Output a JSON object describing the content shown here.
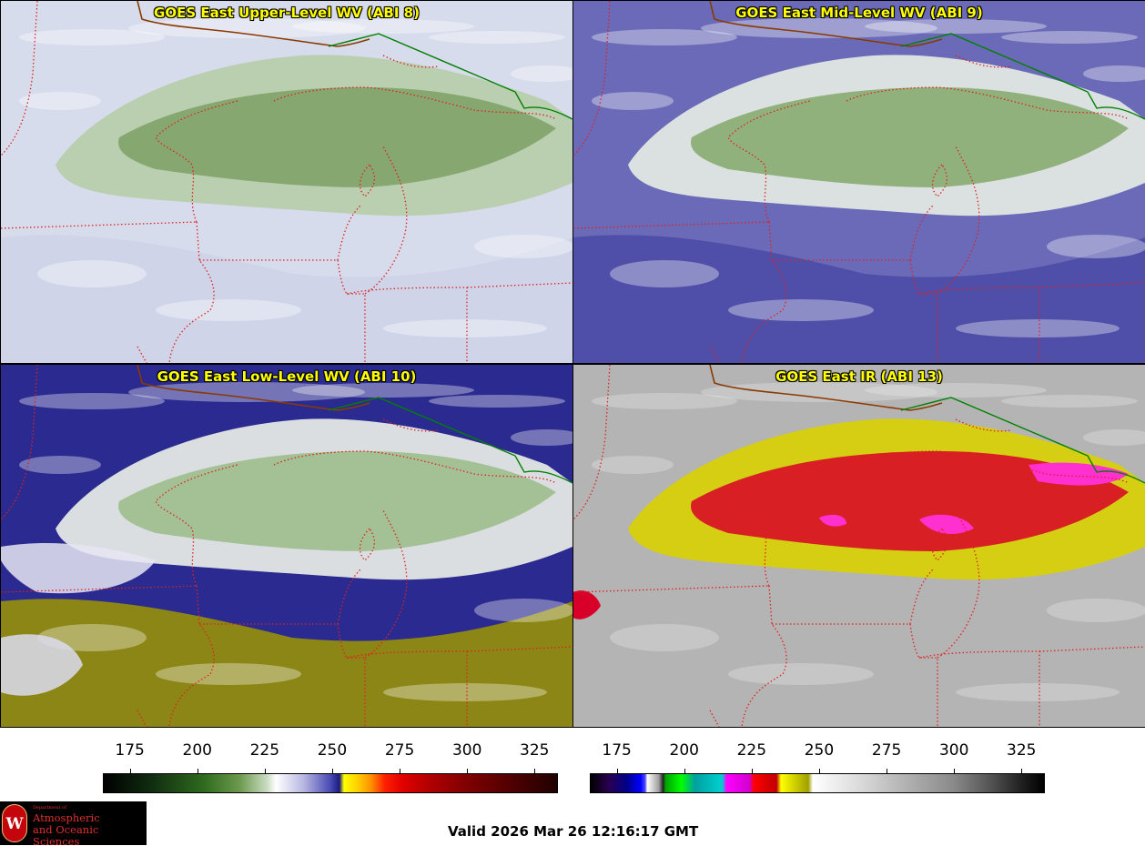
{
  "panels": [
    {
      "id": "ul",
      "title": "GOES East Upper-Level WV (ABI 8)",
      "variant": "upper"
    },
    {
      "id": "ml",
      "title": "GOES East Mid-Level WV (ABI 9)",
      "variant": "mid"
    },
    {
      "id": "ll",
      "title": "GOES East Low-Level WV (ABI 10)",
      "variant": "low"
    },
    {
      "id": "ir",
      "title": "GOES East IR (ABI 13)",
      "variant": "ir"
    }
  ],
  "colorbars": {
    "wv": {
      "ticks": [
        "175",
        "200",
        "225",
        "250",
        "275",
        "300",
        "325"
      ],
      "range": [
        165,
        333
      ]
    },
    "ir": {
      "ticks": [
        "175",
        "200",
        "225",
        "250",
        "275",
        "300",
        "325"
      ],
      "range": [
        165,
        333
      ]
    }
  },
  "map_colors": {
    "state_borders": "#e02020",
    "international_border": "#008000",
    "coast": "#8a3a00",
    "wv_moist": "#5a8a46",
    "wv_mid": "#eef2ee",
    "wv_dry": "#3232a0",
    "wv_very_dry": "#b0a800",
    "ir_cold_red": "#e00030",
    "ir_magenta": "#ff00ff",
    "ir_yellow": "#d4d000",
    "ir_warm_gray": "#bcbcbc"
  },
  "logo": {
    "seal_letter": "W",
    "department": "Department of",
    "line1": "Atmospheric",
    "line2": "and Oceanic Sciences"
  },
  "valid_time": "Valid 2026 Mar 26 12:16:17 GMT"
}
